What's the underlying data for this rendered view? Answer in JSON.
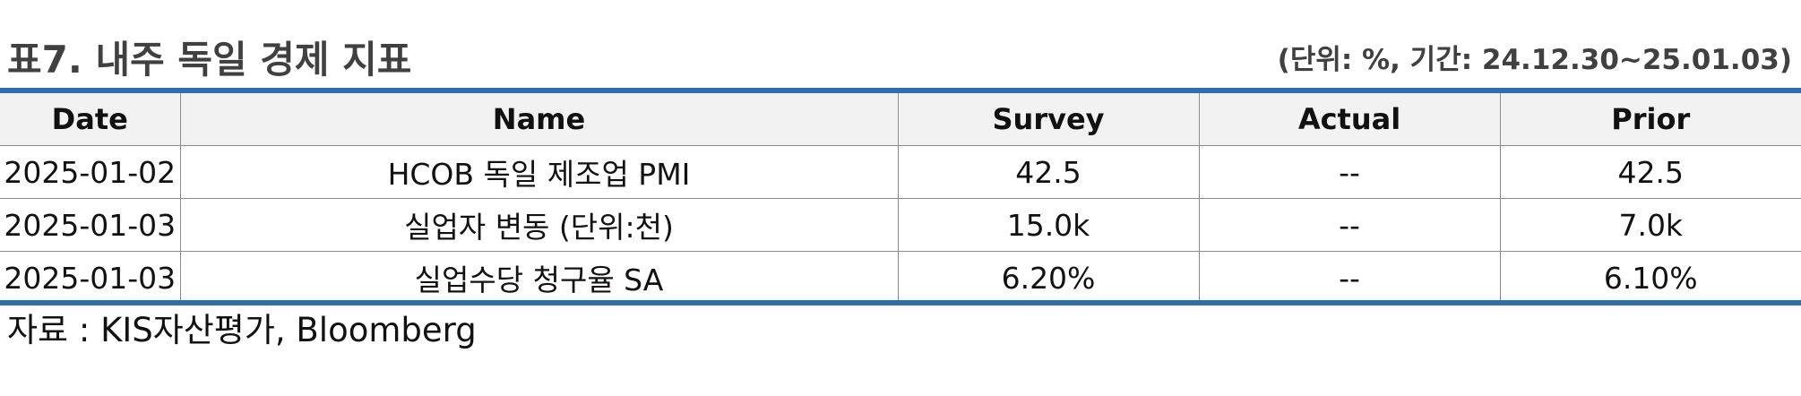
{
  "title": "표7. 내주 독일 경제 지표",
  "unit_note": "(단위: %, 기간: 24.12.30~25.01.03)",
  "accent_color": "#2e6db4",
  "table": {
    "headers": [
      "Date",
      "Name",
      "Survey",
      "Actual",
      "Prior"
    ],
    "rows": [
      [
        "2025-01-02",
        "HCOB 독일 제조업 PMI",
        "42.5",
        "--",
        "42.5"
      ],
      [
        "2025-01-03",
        "실업자 변동 (단위:천)",
        "15.0k",
        "--",
        "7.0k"
      ],
      [
        "2025-01-03",
        "실업수당 청구율 SA",
        "6.20%",
        "--",
        "6.10%"
      ]
    ]
  },
  "source": "자료 : KIS자산평가, Bloomberg"
}
